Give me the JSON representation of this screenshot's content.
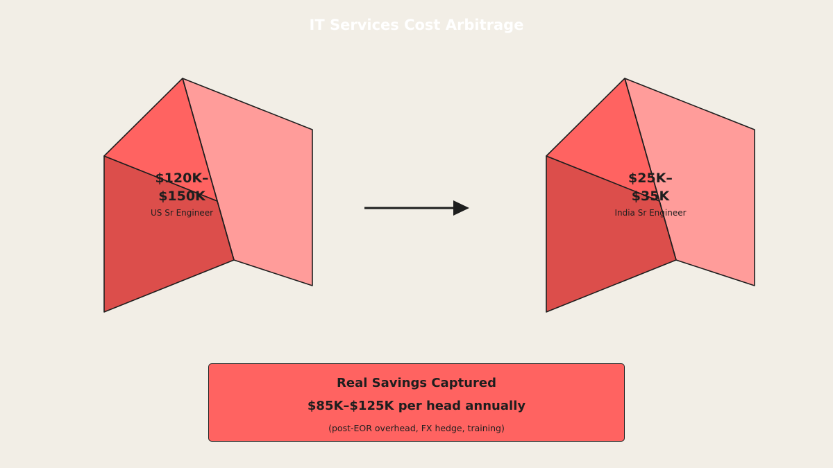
{
  "title": "IT Services Cost Arbitrage",
  "blocks": [
    {
      "value_line1": "$120K–",
      "value_line2": "$150K",
      "caption": "US Sr Engineer"
    },
    {
      "value_line1": "$25K–",
      "value_line2": "$35K",
      "caption": "India Sr Engineer"
    }
  ],
  "savings": {
    "heading": "Real Savings Captured",
    "value": "$85K–$125K per head annually",
    "note": "(post-EOR overhead, FX hedge, training)"
  },
  "colors": {
    "background": "#f2eee6",
    "face_top": "#ff6361",
    "face_front": "#dc4e4b",
    "face_side": "#ff9c9a",
    "stroke": "#1e1e1e",
    "savings_box": "#ff6361"
  }
}
